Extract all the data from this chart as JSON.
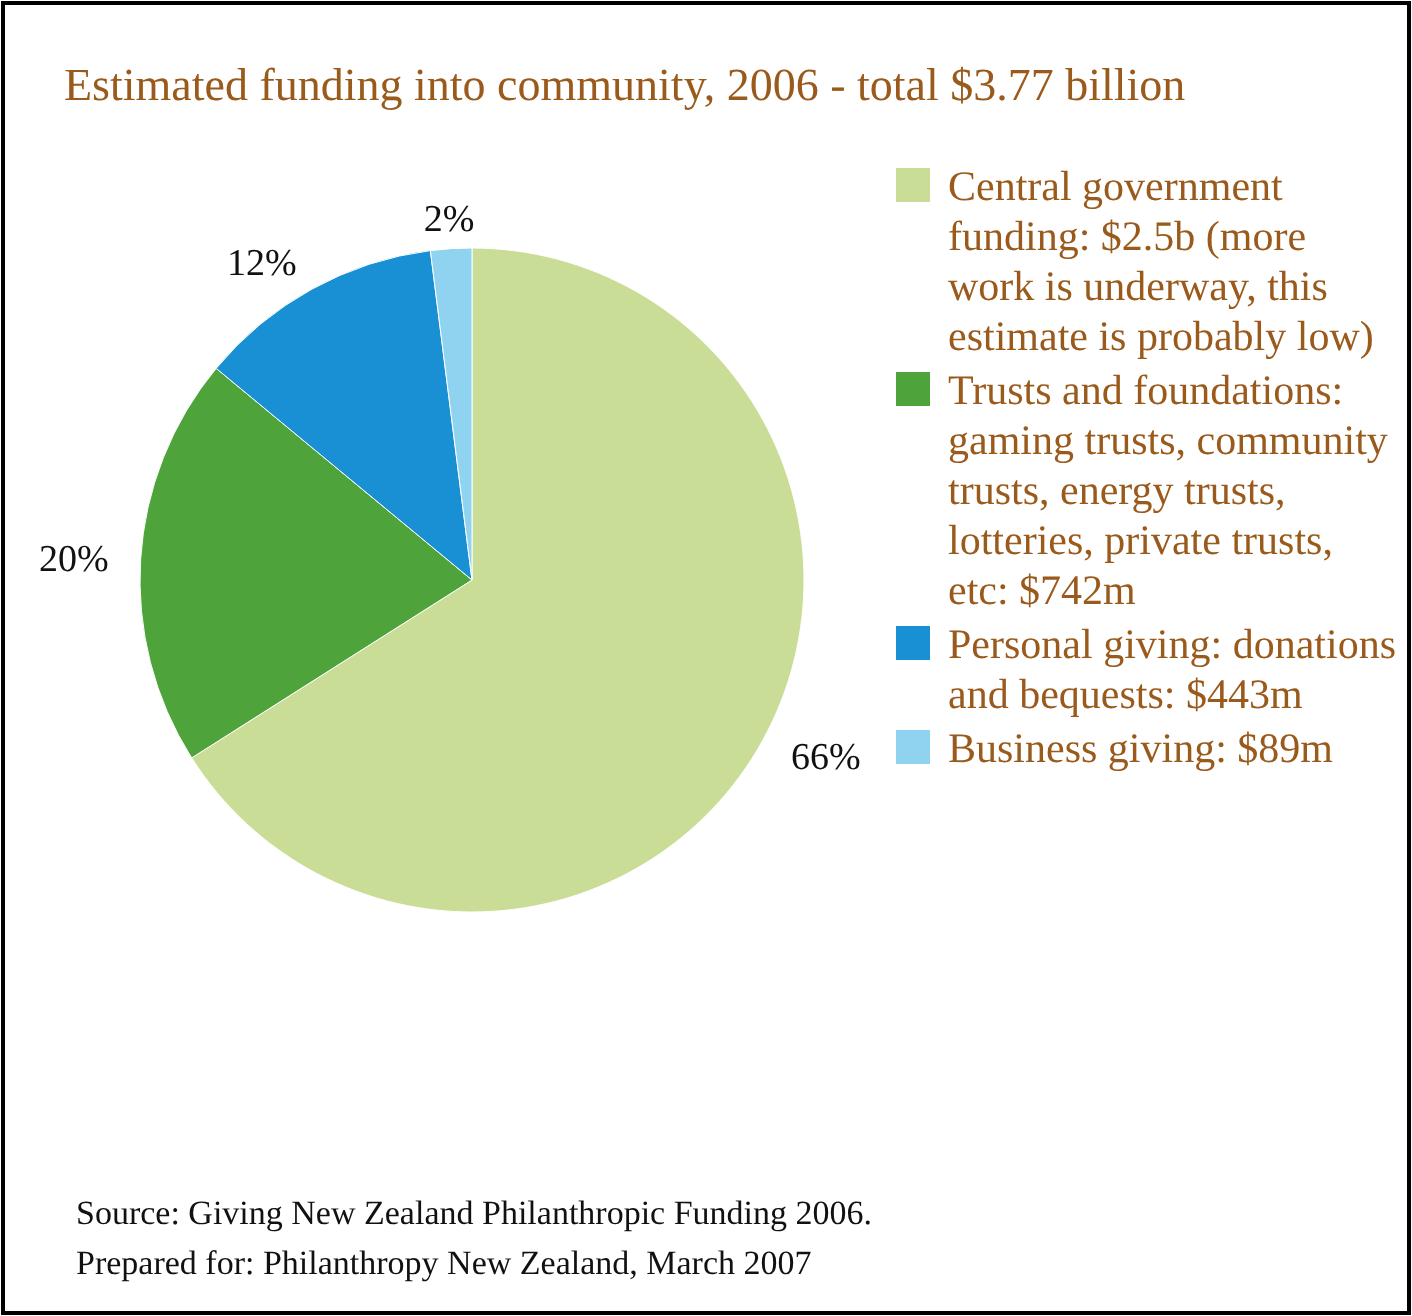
{
  "chart_data": {
    "type": "pie",
    "title": "Estimated funding into community, 2006 - total $3.77 billion",
    "categories": [
      "Central government funding: $2.5b (more work is underway, this estimate is probably low)",
      "Trusts and foundations: gaming trusts, community trusts, energy trusts, lotteries, private trusts, etc: $742m",
      "Personal giving: donations and bequests: $443m",
      "Business giving: $89m"
    ],
    "values": [
      66,
      20,
      12,
      2
    ],
    "colors": [
      "#c9dd96",
      "#4ea43a",
      "#1a90d4",
      "#8fd3f0"
    ],
    "value_labels": [
      "66%",
      "20%",
      "12%",
      "2%"
    ],
    "legend": "right",
    "annotations": [
      "Source: Giving New Zealand Philanthropic Funding 2006.",
      "Prepared for: Philanthropy New Zealand, March 2007"
    ]
  }
}
